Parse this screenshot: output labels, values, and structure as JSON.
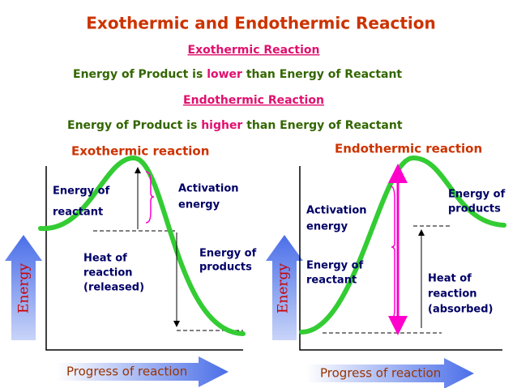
{
  "header": {
    "title": "Exothermic and Endothermic Reaction",
    "exo_heading": "Exothermic Reaction",
    "exo_statement": [
      "Energy of Product is",
      "lower",
      "than Energy of Reactant"
    ],
    "endo_heading": "Endothermic Reaction",
    "endo_statement": [
      "Energy of Product is",
      "higher",
      "than Energy of Reactant"
    ]
  },
  "left": {
    "title": "Exothermic reaction",
    "reactant": [
      "Energy of",
      "reactant"
    ],
    "activation": [
      "Activation",
      "energy"
    ],
    "heat": [
      "Heat of",
      "reaction",
      "(released)"
    ],
    "products": [
      "Energy of",
      "products"
    ],
    "y_axis": "Energy",
    "x_axis": "Progress of reaction"
  },
  "right": {
    "title": "Endothermic reaction",
    "activation": [
      "Activation",
      "energy"
    ],
    "reactant": [
      "Energy of",
      "reactant"
    ],
    "products": [
      "Energy of",
      "products"
    ],
    "heat": [
      "Heat of",
      "reaction",
      "(absorbed)"
    ],
    "y_axis": "Energy",
    "x_axis": "Progress of reaction"
  }
}
